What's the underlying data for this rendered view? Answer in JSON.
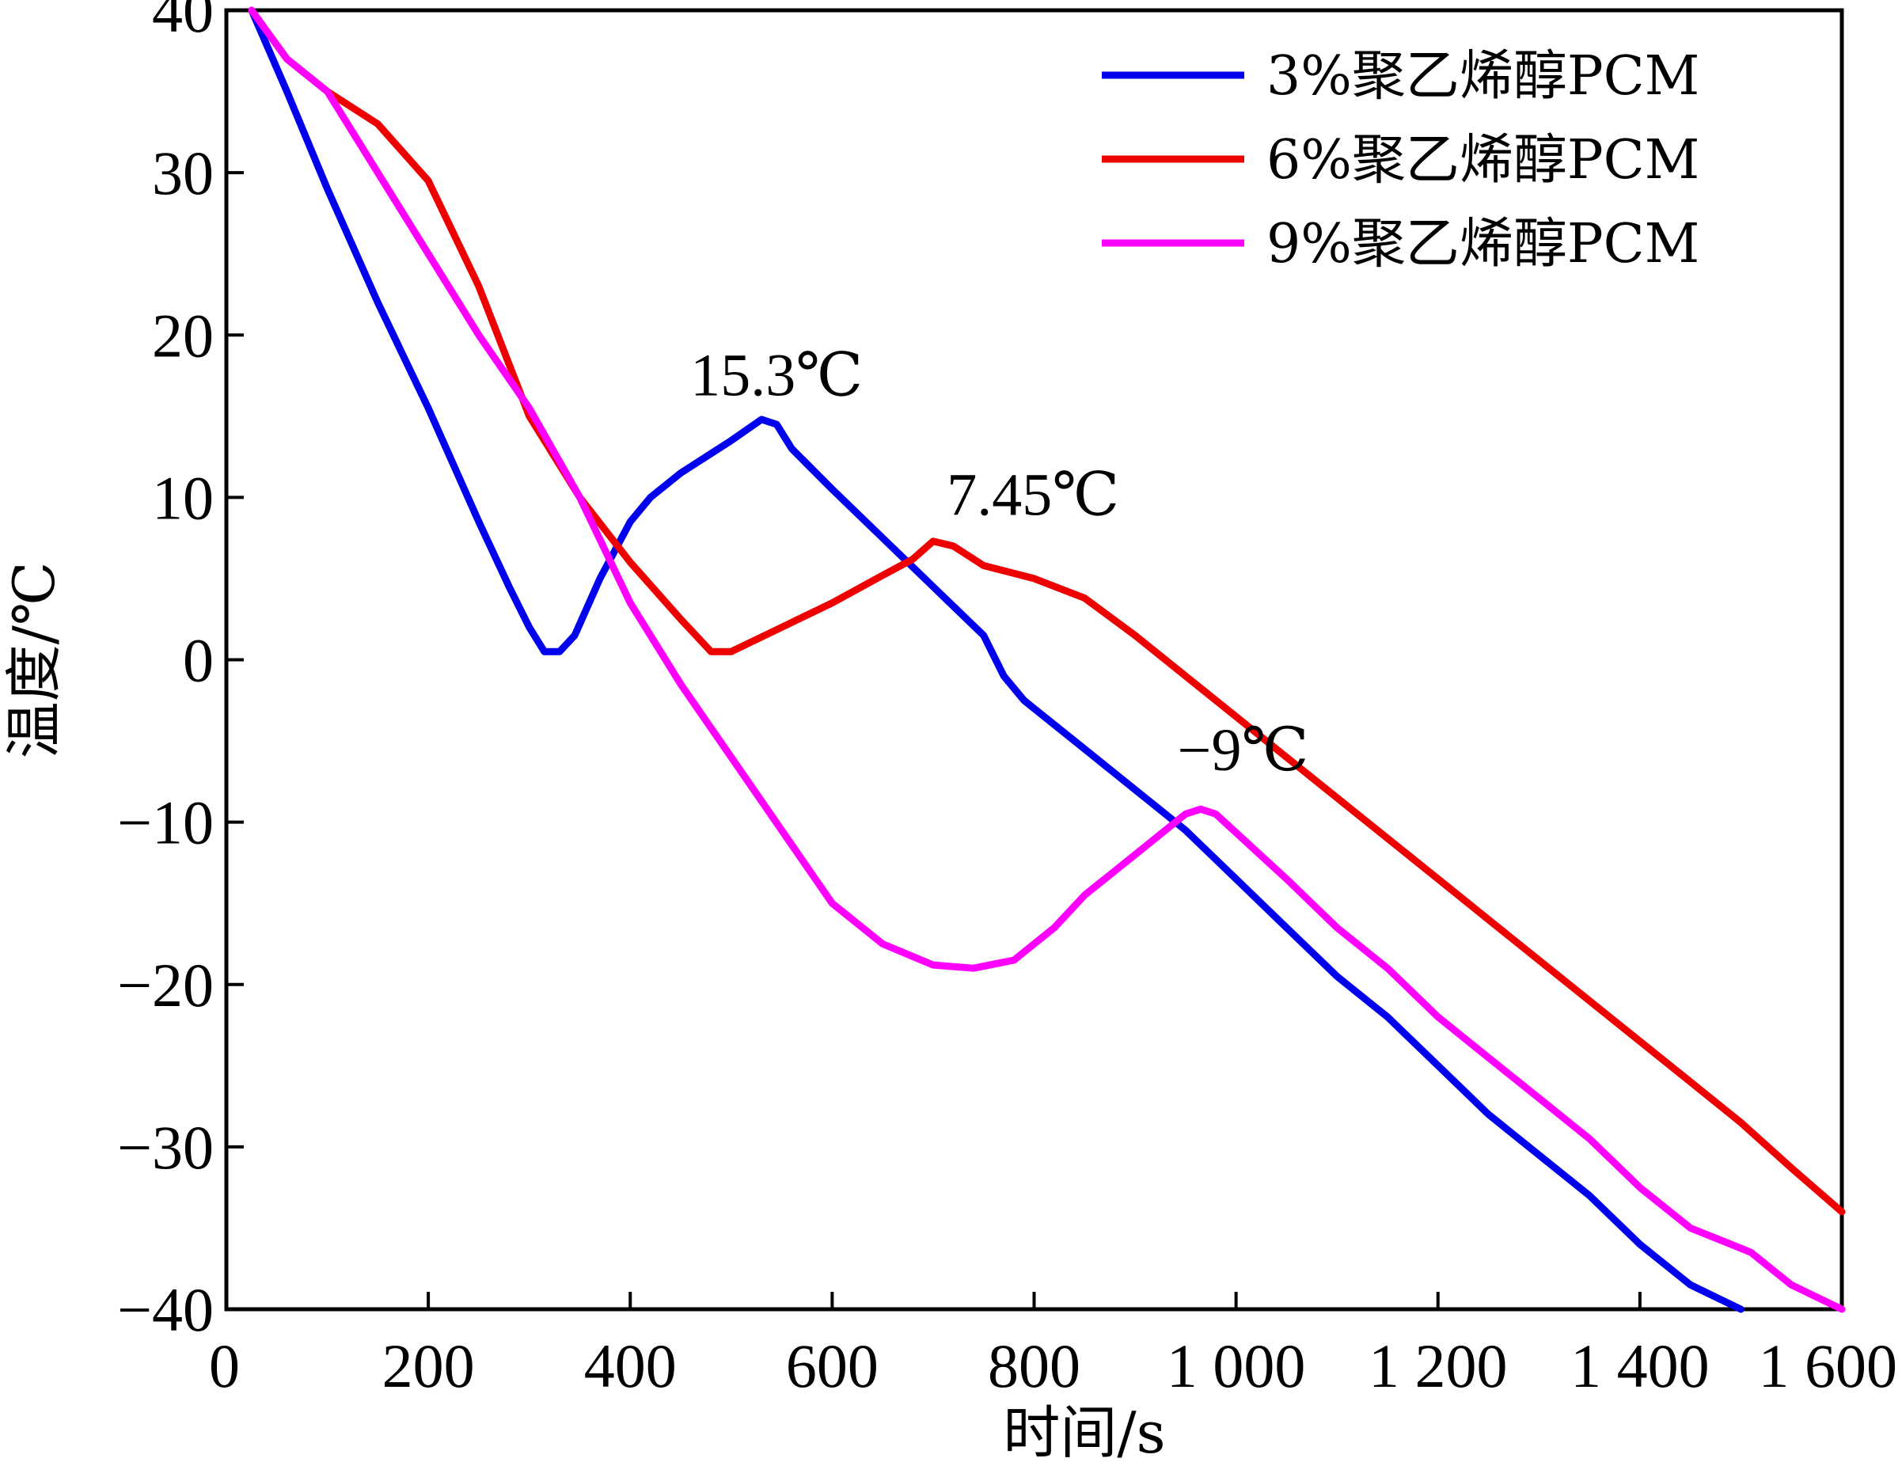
{
  "chart_data": {
    "type": "line",
    "xlabel": "时间/s",
    "ylabel": "温度/℃",
    "xlim": [
      0,
      1600
    ],
    "ylim": [
      -40,
      40
    ],
    "xticks": [
      0,
      200,
      400,
      600,
      800,
      1000,
      1200,
      1400,
      1600
    ],
    "xtick_labels": [
      "0",
      "200",
      "400",
      "600",
      "800",
      "1 000",
      "1 200",
      "1 400",
      "1 600"
    ],
    "yticks": [
      40,
      30,
      20,
      10,
      0,
      -10,
      -20,
      -30,
      -40
    ],
    "ytick_labels": [
      "40",
      "30",
      "20",
      "10",
      "0",
      "−10",
      "−20",
      "−30",
      "−40"
    ],
    "grid": false,
    "legend_position": "top-right",
    "series": [
      {
        "name": "3%聚乙烯醇PCM",
        "color": "#0000ee",
        "x": [
          25,
          60,
          100,
          150,
          200,
          250,
          280,
          300,
          315,
          330,
          345,
          370,
          400,
          420,
          450,
          500,
          530,
          545,
          560,
          600,
          650,
          700,
          750,
          770,
          790,
          850,
          900,
          950,
          1000,
          1050,
          1100,
          1150,
          1200,
          1250,
          1300,
          1350,
          1400,
          1450,
          1500
        ],
        "values": [
          40,
          35,
          29,
          22,
          15.5,
          8.5,
          4.5,
          2,
          0.5,
          0.5,
          1.5,
          5,
          8.5,
          10,
          11.5,
          13.5,
          14.8,
          14.5,
          13,
          10.5,
          7.5,
          4.5,
          1.5,
          -1,
          -2.5,
          -5.5,
          -8,
          -10.5,
          -13.5,
          -16.5,
          -19.5,
          -22,
          -25,
          -28,
          -30.5,
          -33,
          -36,
          -38.5,
          -40
        ]
      },
      {
        "name": "6%聚乙烯醇PCM",
        "color": "#ee0000",
        "x": [
          25,
          60,
          100,
          150,
          200,
          250,
          300,
          350,
          400,
          450,
          480,
          500,
          550,
          600,
          650,
          680,
          700,
          720,
          750,
          800,
          850,
          900,
          950,
          1000,
          1050,
          1100,
          1150,
          1200,
          1250,
          1300,
          1350,
          1400,
          1450,
          1500,
          1550,
          1600
        ],
        "values": [
          40,
          37,
          35,
          33,
          29.5,
          23,
          15,
          10,
          6,
          2.5,
          0.5,
          0.5,
          2,
          3.5,
          5.2,
          6.2,
          7.3,
          7,
          5.8,
          5,
          3.8,
          1.5,
          -1,
          -3.5,
          -6,
          -8.5,
          -11,
          -13.5,
          -16,
          -18.5,
          -21,
          -23.5,
          -26,
          -28.5,
          -31.3,
          -34
        ]
      },
      {
        "name": "9%聚乙烯醇PCM",
        "color": "#ff00ff",
        "x": [
          25,
          60,
          100,
          150,
          200,
          250,
          300,
          350,
          400,
          450,
          500,
          550,
          600,
          650,
          700,
          740,
          780,
          820,
          850,
          900,
          950,
          965,
          980,
          1050,
          1100,
          1150,
          1200,
          1250,
          1300,
          1350,
          1400,
          1450,
          1510,
          1550,
          1600
        ],
        "values": [
          40,
          37,
          35,
          30,
          25,
          20,
          15.5,
          10,
          3.5,
          -1.5,
          -6,
          -10.5,
          -15,
          -17.5,
          -18.8,
          -19,
          -18.5,
          -16.5,
          -14.5,
          -12,
          -9.5,
          -9.2,
          -9.5,
          -13.5,
          -16.5,
          -19,
          -22,
          -24.5,
          -27,
          -29.5,
          -32.5,
          -35,
          -36.5,
          -38.5,
          -40
        ]
      }
    ],
    "annotations": [
      {
        "text": "15.3℃",
        "x": 545,
        "y": 15.3
      },
      {
        "text": "7.45℃",
        "x": 705,
        "y": 7.45
      },
      {
        "text": "−9℃",
        "x": 960,
        "y": -9
      }
    ]
  }
}
